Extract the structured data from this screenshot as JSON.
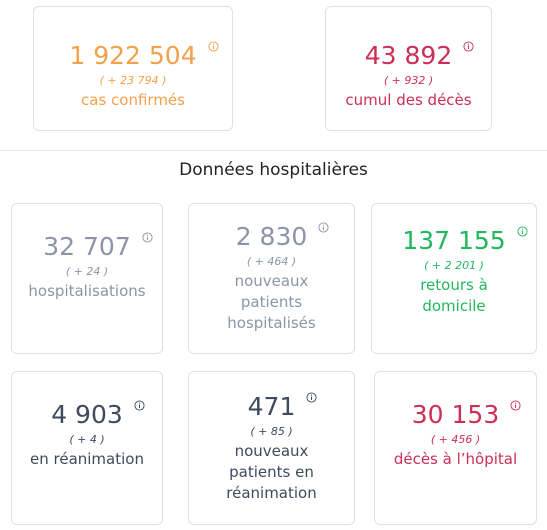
{
  "summary": [
    {
      "value": "1 922 504",
      "delta": "( + 23 794 )",
      "label": "cas confirmés"
    },
    {
      "value": "43 892",
      "delta": "( + 932 )",
      "label": "cumul des décès"
    }
  ],
  "section_title": "Données hospitalières",
  "hospital": [
    {
      "value": "32 707",
      "delta": "( + 24 )",
      "label": "hospitalisations"
    },
    {
      "value": "2 830",
      "delta": "( + 464 )",
      "label": "nouveaux patients hospitalisés"
    },
    {
      "value": "137 155",
      "delta": "( + 2 201 )",
      "label": "retours à domicile"
    },
    {
      "value": "4 903",
      "delta": "( + 4 )",
      "label": "en réanimation"
    },
    {
      "value": "471",
      "delta": "( + 85 )",
      "label": "nouveaux patients en réanimation"
    },
    {
      "value": "30 153",
      "delta": "( + 456 )",
      "label": "décès à l’hôpital"
    }
  ]
}
